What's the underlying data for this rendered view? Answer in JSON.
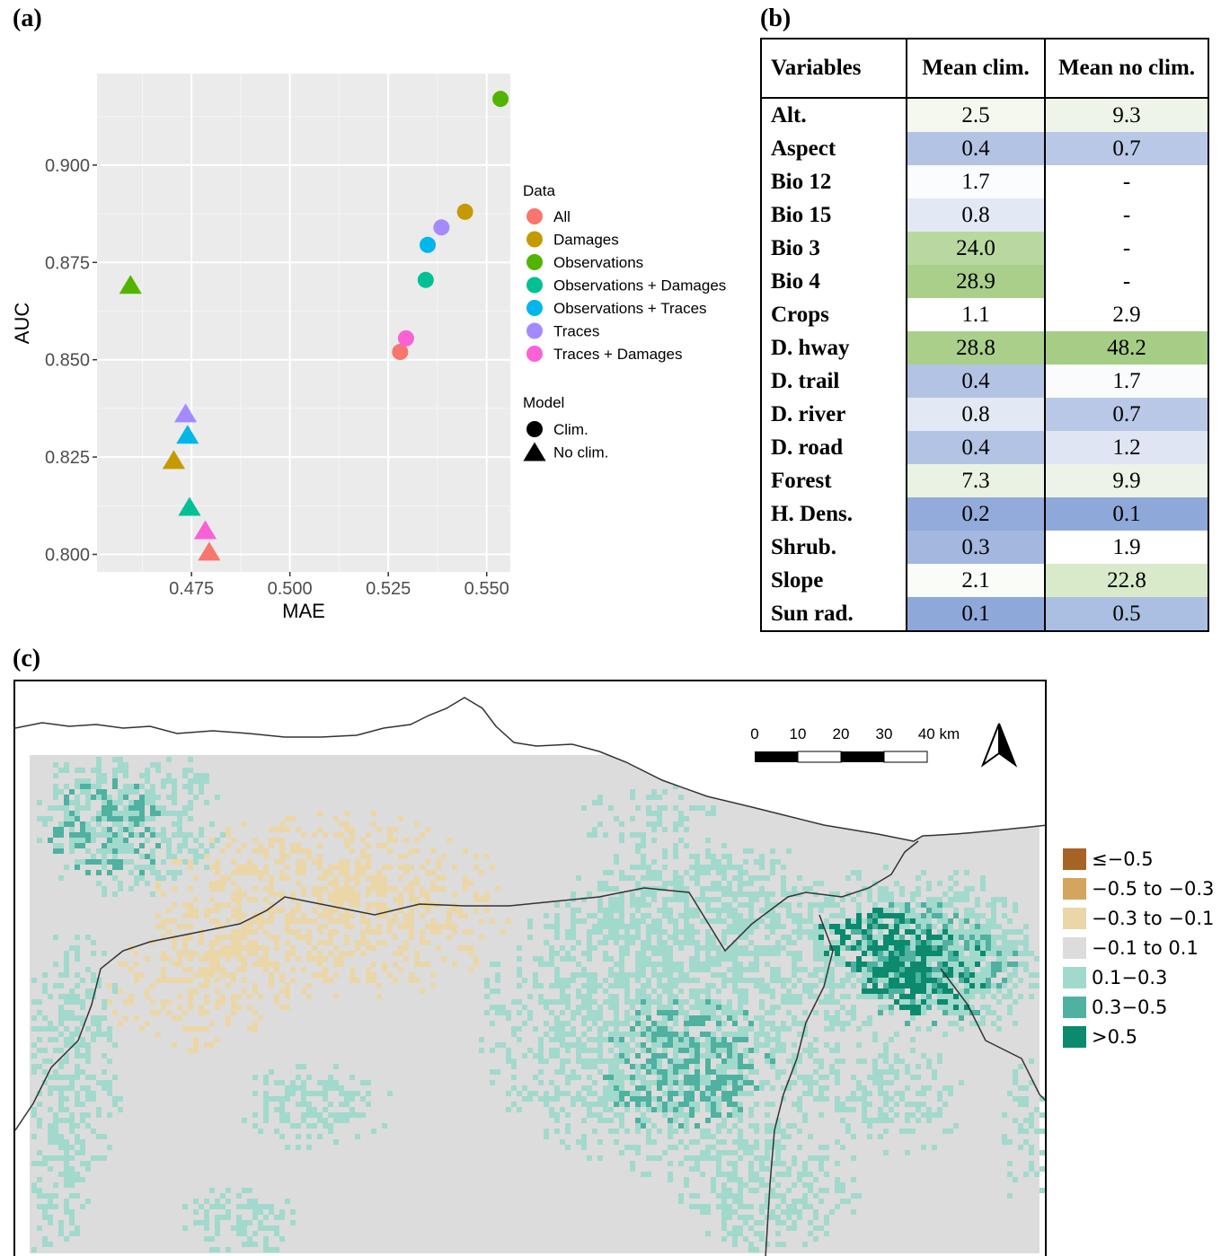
{
  "panels": {
    "a": "(a)",
    "b": "(b)",
    "c": "(c)"
  },
  "chart_data": {
    "type": "scatter",
    "title": "",
    "xlabel": "MAE",
    "ylabel": "AUC",
    "xlim": [
      0.451,
      0.556
    ],
    "ylim": [
      0.7955,
      0.9235
    ],
    "xticks": [
      {
        "value": 0.475,
        "label": "0.475"
      },
      {
        "value": 0.5,
        "label": "0.500"
      },
      {
        "value": 0.525,
        "label": "0.525"
      },
      {
        "value": 0.55,
        "label": "0.550"
      }
    ],
    "yticks": [
      {
        "value": 0.8,
        "label": "0.800"
      },
      {
        "value": 0.825,
        "label": "0.825"
      },
      {
        "value": 0.85,
        "label": "0.850"
      },
      {
        "value": 0.875,
        "label": "0.875"
      },
      {
        "value": 0.9,
        "label": "0.900"
      }
    ],
    "grid": true,
    "background": "#ebebeb",
    "legend_position": "right",
    "color_legend": {
      "title": "Data",
      "entries": [
        {
          "name": "All",
          "color": "#F8766D"
        },
        {
          "name": "Damages",
          "color": "#C49A00"
        },
        {
          "name": "Observations",
          "color": "#53B400"
        },
        {
          "name": "Observations + Damages",
          "color": "#00C094"
        },
        {
          "name": "Observations + Traces",
          "color": "#00B6EB"
        },
        {
          "name": "Traces",
          "color": "#A58AFF"
        },
        {
          "name": "Traces + Damages",
          "color": "#FB61D7"
        }
      ]
    },
    "shape_legend": {
      "title": "Model",
      "entries": [
        {
          "name": "Clim.",
          "shape": "circle"
        },
        {
          "name": "No clim.",
          "shape": "triangle"
        }
      ]
    },
    "series": [
      {
        "data": "All",
        "model": "Clim.",
        "x": 0.528,
        "y": 0.852
      },
      {
        "data": "Damages",
        "model": "Clim.",
        "x": 0.5445,
        "y": 0.888
      },
      {
        "data": "Observations",
        "model": "Clim.",
        "x": 0.5535,
        "y": 0.917
      },
      {
        "data": "Observations + Damages",
        "model": "Clim.",
        "x": 0.5345,
        "y": 0.8705
      },
      {
        "data": "Observations + Traces",
        "model": "Clim.",
        "x": 0.535,
        "y": 0.8795
      },
      {
        "data": "Traces",
        "model": "Clim.",
        "x": 0.5385,
        "y": 0.884
      },
      {
        "data": "Traces + Damages",
        "model": "Clim.",
        "x": 0.5295,
        "y": 0.8555
      },
      {
        "data": "All",
        "model": "No clim.",
        "x": 0.4795,
        "y": 0.8005
      },
      {
        "data": "Damages",
        "model": "No clim.",
        "x": 0.4705,
        "y": 0.824
      },
      {
        "data": "Observations",
        "model": "No clim.",
        "x": 0.4595,
        "y": 0.869
      },
      {
        "data": "Observations + Damages",
        "model": "No clim.",
        "x": 0.4745,
        "y": 0.812
      },
      {
        "data": "Observations + Traces",
        "model": "No clim.",
        "x": 0.474,
        "y": 0.8305
      },
      {
        "data": "Traces",
        "model": "No clim.",
        "x": 0.4735,
        "y": 0.836
      },
      {
        "data": "Traces + Damages",
        "model": "No clim.",
        "x": 0.4785,
        "y": 0.806
      }
    ]
  },
  "table": {
    "headers": [
      "Variables",
      "Mean clim.",
      "Mean no clim."
    ],
    "rows": [
      {
        "var": "Alt.",
        "clim": "2.5",
        "noclim": "9.3",
        "clim_color": "#f4f8ef",
        "noclim_color": "#eef4e8"
      },
      {
        "var": "Aspect",
        "clim": "0.4",
        "noclim": "0.7",
        "clim_color": "#b2c3e4",
        "noclim_color": "#b8c8e6"
      },
      {
        "var": "Bio 12",
        "clim": "1.7",
        "noclim": "-",
        "clim_color": "#fbfcfe",
        "noclim_color": "#ffffff"
      },
      {
        "var": "Bio 15",
        "clim": "0.8",
        "noclim": "-",
        "clim_color": "#e2e8f4",
        "noclim_color": "#ffffff"
      },
      {
        "var": "Bio 3",
        "clim": "24.0",
        "noclim": "-",
        "clim_color": "#b9d8a0",
        "noclim_color": "#ffffff"
      },
      {
        "var": "Bio 4",
        "clim": "28.9",
        "noclim": "-",
        "clim_color": "#a9cf8a",
        "noclim_color": "#ffffff"
      },
      {
        "var": "Crops",
        "clim": "1.1",
        "noclim": "2.9",
        "clim_color": "#ffffff",
        "noclim_color": "#ffffff"
      },
      {
        "var": "D. hway",
        "clim": "28.8",
        "noclim": "48.2",
        "clim_color": "#a9cf8a",
        "noclim_color": "#a6cd86"
      },
      {
        "var": "D. trail",
        "clim": "0.4",
        "noclim": "1.7",
        "clim_color": "#b2c3e4",
        "noclim_color": "#fafbfd"
      },
      {
        "var": "D. river",
        "clim": "0.8",
        "noclim": "0.7",
        "clim_color": "#e2e8f4",
        "noclim_color": "#b8c8e6"
      },
      {
        "var": "D. road",
        "clim": "0.4",
        "noclim": "1.2",
        "clim_color": "#b2c3e4",
        "noclim_color": "#dfe5f3"
      },
      {
        "var": "Forest",
        "clim": "7.3",
        "noclim": "9.9",
        "clim_color": "#eaf3e3",
        "noclim_color": "#edf4e7"
      },
      {
        "var": "H. Dens.",
        "clim": "0.2",
        "noclim": "0.1",
        "clim_color": "#93abda",
        "noclim_color": "#8fa8da"
      },
      {
        "var": "Shrub.",
        "clim": "0.3",
        "noclim": "1.9",
        "clim_color": "#a3b7df",
        "noclim_color": "#ffffff"
      },
      {
        "var": "Slope",
        "clim": "2.1",
        "noclim": "22.8",
        "clim_color": "#fafcf8",
        "noclim_color": "#d9eacb"
      },
      {
        "var": "Sun rad.",
        "clim": "0.1",
        "noclim": "0.5",
        "clim_color": "#8fa8da",
        "noclim_color": "#abbfe2"
      }
    ]
  },
  "map": {
    "scale_labels": [
      "0",
      "10",
      "20",
      "30",
      "40 km"
    ],
    "legend": [
      {
        "label": "≤−0.5",
        "color": "#a66424"
      },
      {
        "label": "−0.5 to −0.3",
        "color": "#d3a55e"
      },
      {
        "label": "−0.3 to −0.1",
        "color": "#ebd6a7"
      },
      {
        "label": "−0.1 to 0.1",
        "color": "#dcdcdc"
      },
      {
        "label": "0.1−0.3",
        "color": "#a2d9cd"
      },
      {
        "label": "0.3−0.5",
        "color": "#4fb1a0"
      },
      {
        "label": ">0.5",
        "color": "#0b8a6e"
      }
    ]
  }
}
